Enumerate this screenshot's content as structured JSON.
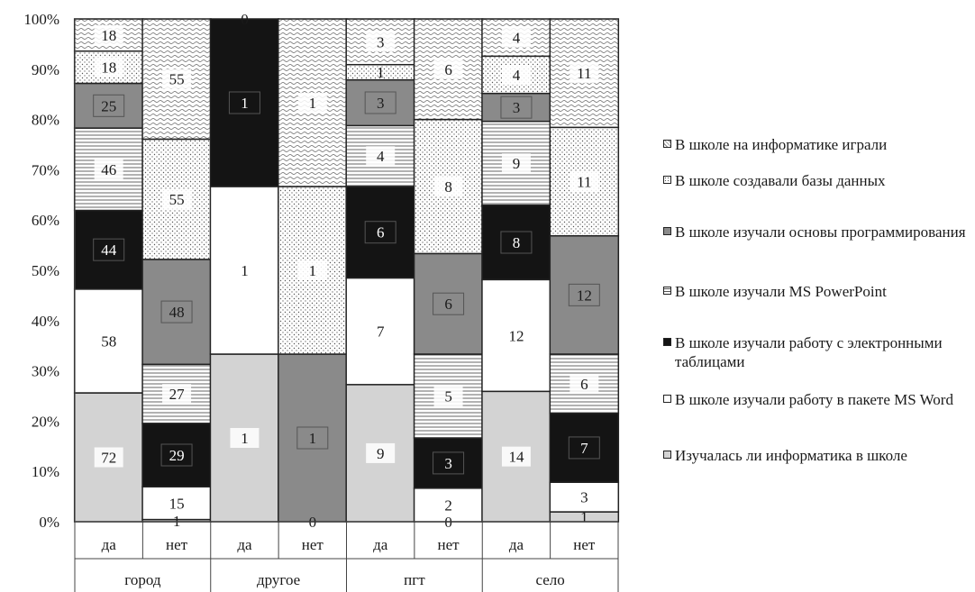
{
  "chart_data": {
    "type": "bar",
    "stacked": "percent",
    "y_ticks": [
      "0%",
      "10%",
      "20%",
      "30%",
      "40%",
      "50%",
      "60%",
      "70%",
      "80%",
      "90%",
      "100%"
    ],
    "ylim": [
      0,
      100
    ],
    "categories": [
      "да",
      "нет",
      "да",
      "нет",
      "да",
      "нет",
      "да",
      "нет"
    ],
    "groups": [
      "город",
      "другое",
      "пгт",
      "село"
    ],
    "legend_position": "right",
    "series": [
      {
        "name": "Изучалась ли информатика в школе",
        "fill": "#d3d3d3",
        "pattern": "solid",
        "values": [
          72,
          1,
          1,
          0,
          9,
          0,
          14,
          1
        ],
        "labels": [
          "72",
          "1",
          "1",
          "0",
          "9",
          "0",
          "14",
          "1"
        ]
      },
      {
        "name": "В школе изучали работу в пакете MS Word",
        "fill": "#ffffff",
        "pattern": "solid",
        "values": [
          58,
          15,
          1,
          0,
          7,
          2,
          12,
          3
        ],
        "labels": [
          "58",
          "15",
          "1",
          "",
          "7",
          "2",
          "12",
          "3"
        ]
      },
      {
        "name": "В школе изучали работу с электронными таблицами",
        "fill": "#141414",
        "pattern": "solid",
        "values": [
          44,
          29,
          1,
          0,
          6,
          3,
          8,
          7
        ],
        "labels": [
          "44",
          "29",
          "1",
          "",
          "6",
          "3",
          "8",
          "7"
        ]
      },
      {
        "name": "В школе изучали MS PowerPoint",
        "fill": "#ffffff",
        "pattern": "hlines",
        "values": [
          46,
          27,
          0,
          0,
          4,
          5,
          9,
          6
        ],
        "labels": [
          "46",
          "27",
          "",
          "",
          "4",
          "5",
          "9",
          "6"
        ]
      },
      {
        "name": "В школе изучали основы программирования",
        "fill": "#8a8a8a",
        "pattern": "solid",
        "values": [
          25,
          48,
          0,
          1,
          3,
          6,
          3,
          12
        ],
        "labels": [
          "25",
          "48",
          "",
          "1",
          "3",
          "6",
          "3",
          "12"
        ]
      },
      {
        "name": "В школе создавали базы данных",
        "fill": "#ffffff",
        "pattern": "dots",
        "values": [
          18,
          55,
          0,
          1,
          1,
          8,
          4,
          11
        ],
        "labels": [
          "18",
          "55",
          "",
          "1",
          "1",
          "8",
          "4",
          "11"
        ]
      },
      {
        "name": "В школе на информатике играли",
        "fill": "#ffffff",
        "pattern": "waves",
        "values": [
          18,
          55,
          0,
          1,
          3,
          6,
          4,
          11
        ],
        "labels": [
          "18",
          "55",
          "0",
          "1",
          "3",
          "6",
          "4",
          "11"
        ]
      }
    ]
  },
  "legend": [
    "В школе на информатике играли",
    "В школе создавали базы данных",
    "В школе изучали основы программирования",
    "В школе изучали MS PowerPoint",
    "В школе изучали работу с электронными таблицами",
    "В школе изучали работу в пакете MS Word",
    "Изучалась ли информатика в школе"
  ]
}
